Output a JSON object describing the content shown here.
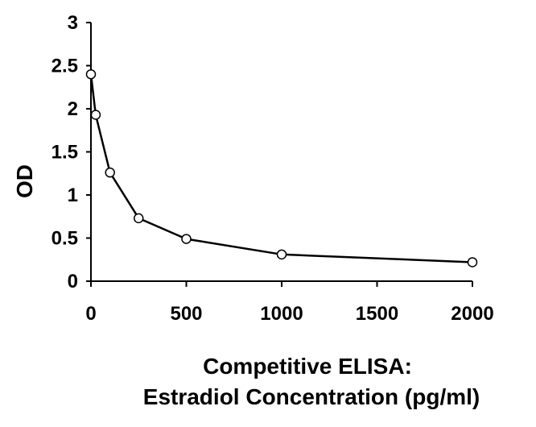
{
  "chart_data": {
    "type": "line",
    "xlabel": [
      "Competitive ELISA:",
      "Estradiol Concentration (pg/ml)"
    ],
    "ylabel": "OD",
    "xlim": [
      0,
      2000
    ],
    "ylim": [
      0,
      3
    ],
    "xticks": [
      "0",
      "500",
      "1000",
      "1500",
      "2000"
    ],
    "yticks": [
      "0",
      "0.5",
      "1",
      "1.5",
      "2",
      "2.5",
      "3"
    ],
    "grid": false,
    "markers": "open-circle",
    "series": [
      {
        "x": [
          0,
          25,
          100,
          250,
          500,
          1000,
          2000
        ],
        "y": [
          2.4,
          1.93,
          1.26,
          0.73,
          0.49,
          0.31,
          0.22
        ]
      }
    ]
  }
}
